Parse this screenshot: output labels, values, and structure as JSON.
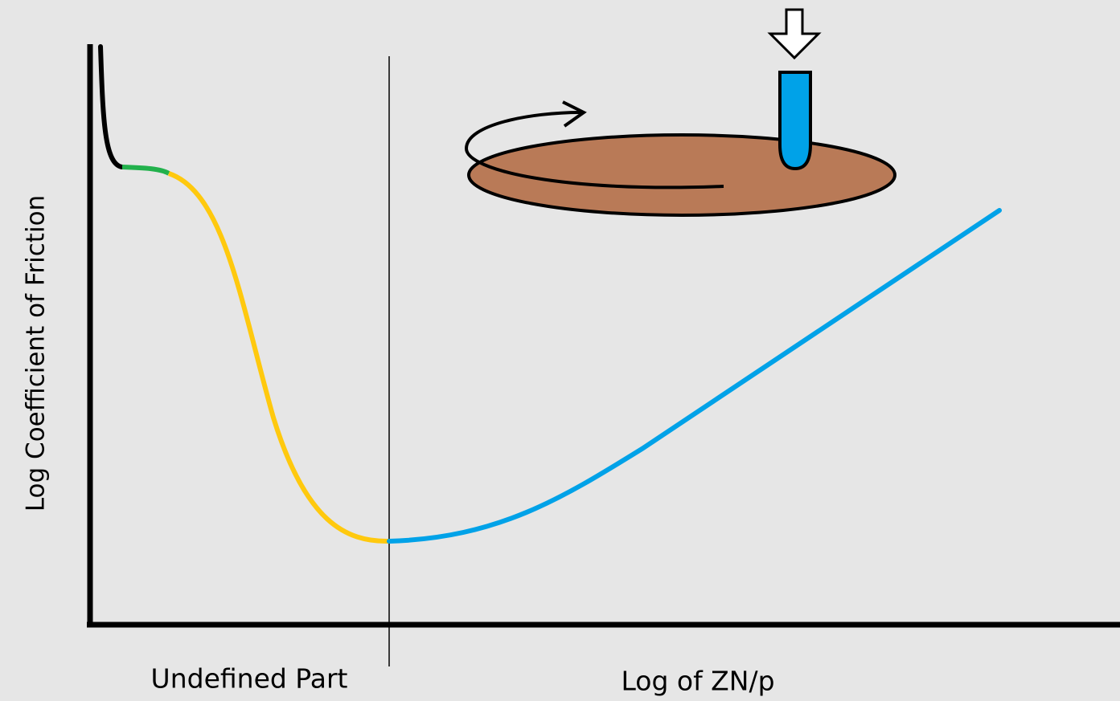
{
  "axis_labels": {
    "y": "Log Coefficient of Friction",
    "x": "Log of ZN/p"
  },
  "regions": [
    {
      "label": "Undefined Part"
    }
  ]
}
